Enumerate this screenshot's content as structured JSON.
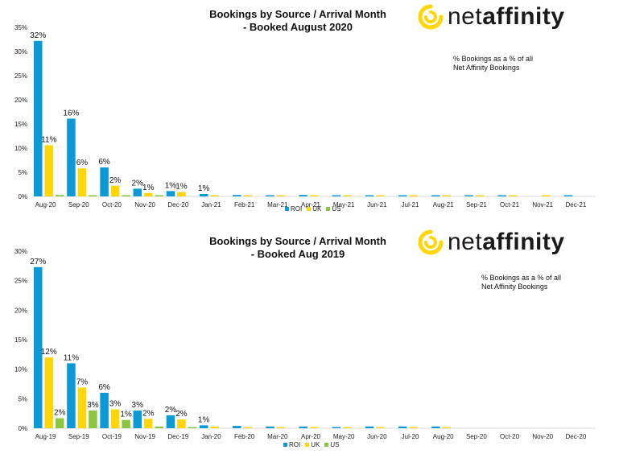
{
  "colors": {
    "ROI": "#0b9ad6",
    "UK": "#ffd60a",
    "US": "#8cc63f",
    "brand_yellow": "#ffd60a"
  },
  "logo": {
    "prefix": "net",
    "suffix": "affinity",
    "icon": "yellow-swirl-icon"
  },
  "panels": [
    {
      "title_line1": "Bookings by Source / Arrival Month",
      "title_line2": "- Booked August 2020",
      "note": "% Bookings as a % of all Net Affinity Bookings",
      "legend": [
        "ROI",
        "UK",
        "US"
      ]
    },
    {
      "title_line1": "Bookings by Source / Arrival Month",
      "title_line2": "- Booked Aug 2019",
      "note": "% Bookings as a % of all Net Affinity Bookings",
      "legend": [
        "ROI",
        "UK",
        "US"
      ]
    }
  ],
  "chart_data": [
    {
      "type": "bar",
      "title": "Bookings by Source / Arrival Month - Booked August 2020",
      "categories": [
        "Aug-20",
        "Sep-20",
        "Oct-20",
        "Nov-20",
        "Dec-20",
        "Jan-21",
        "Feb-21",
        "Mar-21",
        "Apr-21",
        "May-21",
        "Jun-21",
        "Jul-21",
        "Aug-21",
        "Sep-21",
        "Oct-21",
        "Nov-21",
        "Dec-21"
      ],
      "series": [
        {
          "name": "ROI",
          "values": [
            32.2,
            16.1,
            6.0,
            1.6,
            1.1,
            0.5,
            0.3,
            0.2,
            0.3,
            0.2,
            0.2,
            0.2,
            0.2,
            0.2,
            0.2,
            0.0,
            0.1
          ],
          "labels": [
            "32%",
            "16%",
            "6%",
            "2%",
            "1%",
            "1%",
            "",
            "",
            "",
            "",
            "",
            "",
            "",
            "",
            "",
            "",
            ""
          ]
        },
        {
          "name": "UK",
          "values": [
            10.6,
            5.8,
            2.2,
            0.7,
            0.9,
            0.2,
            0.2,
            0.2,
            0.2,
            0.2,
            0.2,
            0.1,
            0.1,
            0.2,
            0.1,
            0.1,
            0.0
          ],
          "labels": [
            "11%",
            "6%",
            "2%",
            "1%",
            "1%",
            "",
            "",
            "",
            "",
            "",
            "",
            "",
            "",
            "",
            "",
            "",
            ""
          ]
        },
        {
          "name": "US",
          "values": [
            0.3,
            0.1,
            0.1,
            0.1,
            0.0,
            0.0,
            0.0,
            0.0,
            0.0,
            0.0,
            0.0,
            0.0,
            0.0,
            0.0,
            0.0,
            0.0,
            0.0
          ],
          "labels": [
            "",
            "",
            "",
            "",
            "",
            "",
            "",
            "",
            "",
            "",
            "",
            "",
            "",
            "",
            "",
            "",
            ""
          ]
        }
      ],
      "ylim": [
        0,
        35
      ],
      "yticks": [
        "0%",
        "5%",
        "10%",
        "15%",
        "20%",
        "25%",
        "30%",
        "35%"
      ],
      "ytick_values": [
        0,
        5,
        10,
        15,
        20,
        25,
        30,
        35
      ],
      "legend_position": "bottom"
    },
    {
      "type": "bar",
      "title": "Bookings by Source / Arrival Month - Booked Aug 2019",
      "categories": [
        "Aug-19",
        "Sep-19",
        "Oct-19",
        "Nov-19",
        "Dec-19",
        "Jan-20",
        "Feb-20",
        "Mar-20",
        "Apr-20",
        "May-20",
        "Jun-20",
        "Jul-20",
        "Aug-20",
        "Sep-20",
        "Oct-20",
        "Nov-20",
        "Dec-20"
      ],
      "series": [
        {
          "name": "ROI",
          "values": [
            27.3,
            11.0,
            6.0,
            3.0,
            2.2,
            0.5,
            0.4,
            0.3,
            0.3,
            0.2,
            0.3,
            0.3,
            0.3,
            0.0,
            0.0,
            0.0,
            0.0
          ],
          "labels": [
            "27%",
            "11%",
            "6%",
            "3%",
            "2%",
            "1%",
            "",
            "",
            "",
            "",
            "",
            "",
            "",
            "",
            "",
            "",
            ""
          ]
        },
        {
          "name": "UK",
          "values": [
            12.0,
            6.9,
            3.2,
            1.6,
            1.5,
            0.3,
            0.2,
            0.1,
            0.2,
            0.1,
            0.2,
            0.1,
            0.1,
            0.0,
            0.0,
            0.0,
            0.0
          ],
          "labels": [
            "12%",
            "7%",
            "3%",
            "2%",
            "2%",
            "",
            "",
            "",
            "",
            "",
            "",
            "",
            "",
            "",
            "",
            "",
            ""
          ]
        },
        {
          "name": "US",
          "values": [
            1.7,
            3.0,
            1.4,
            0.3,
            0.1,
            0.0,
            0.0,
            0.0,
            0.0,
            0.0,
            0.0,
            0.0,
            0.0,
            0.0,
            0.0,
            0.0,
            0.0
          ],
          "labels": [
            "2%",
            "3%",
            "1%",
            "",
            "",
            "",
            "",
            "",
            "",
            "",
            "",
            "",
            "",
            "",
            "",
            "",
            ""
          ]
        }
      ],
      "ylim": [
        0,
        30
      ],
      "yticks": [
        "0%",
        "5%",
        "10%",
        "15%",
        "20%",
        "25%",
        "30%"
      ],
      "ytick_values": [
        0,
        5,
        10,
        15,
        20,
        25,
        30
      ],
      "legend_position": "bottom"
    }
  ]
}
